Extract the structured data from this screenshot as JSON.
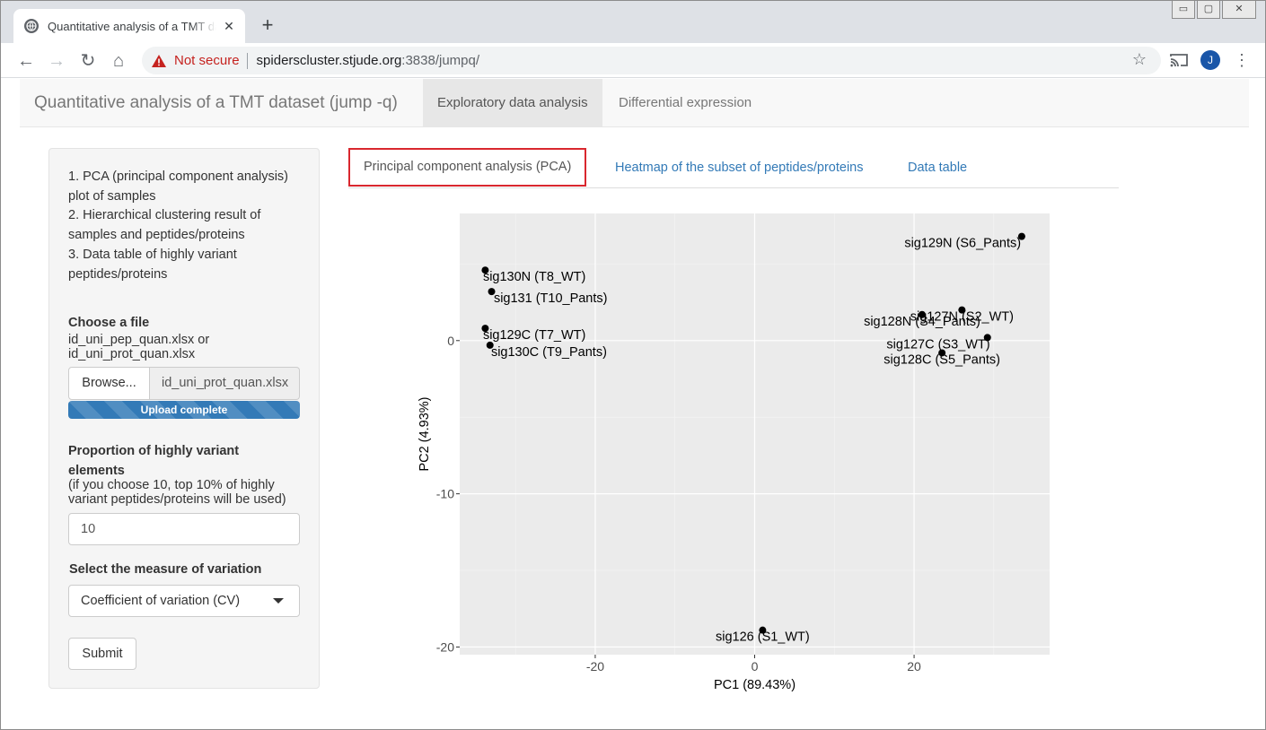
{
  "browser": {
    "tab_title": "Quantitative analysis of a TMT dataset (jump -q)",
    "tab_close": "✕",
    "new_tab": "+",
    "security_label": "Not secure",
    "url_host": "spiderscluster.stjude.org",
    "url_rest": ":3838/jumpq/",
    "profile_initial": "J",
    "window_controls": [
      "▭",
      "▢",
      "✕"
    ]
  },
  "app": {
    "brand": "Quantitative analysis of a TMT dataset (jump -q)",
    "nav_tabs": [
      "Exploratory data analysis",
      "Differential expression"
    ],
    "active_nav": "Exploratory data analysis"
  },
  "sidebar": {
    "description": [
      "1. PCA (principal component analysis) plot of samples",
      "2. Hierarchical clustering result of samples and peptides/proteins",
      "3. Data table of highly variant peptides/proteins"
    ],
    "file_label": "Choose a file",
    "file_hint": [
      "id_uni_pep_quan.xlsx or",
      "id_uni_prot_quan.xlsx"
    ],
    "browse_label": "Browse...",
    "file_name": "id_uni_prot_quan.xlsx",
    "upload_status": "Upload complete",
    "upload_progress": 1.0,
    "proportion_label": "Proportion of highly variant elements",
    "proportion_hint": [
      "(if you choose 10, top 10% of highly",
      "variant peptides/proteins will be used)"
    ],
    "proportion_value": "10",
    "measure_label": "Select the measure of variation",
    "measure_value": "Coefficient of variation (CV)",
    "submit_label": "Submit"
  },
  "main_tabs": [
    "Principal component analysis (PCA)",
    "Heatmap of the subset of peptides/proteins",
    "Data table"
  ],
  "active_main_tab": "Principal component analysis (PCA)",
  "chart_data": {
    "type": "scatter",
    "xlabel": "PC1 (89.43%)",
    "ylabel": "PC2 (4.93%)",
    "xlim": [
      -37,
      37
    ],
    "ylim": [
      -20.5,
      8.3
    ],
    "x_ticks": [
      -20,
      0,
      20
    ],
    "y_ticks": [
      -20,
      -10,
      0
    ],
    "x_tick_labels": [
      "-20",
      "0",
      "20"
    ],
    "y_tick_labels": [
      "-20",
      "-10",
      "0"
    ],
    "grid": true,
    "background": "#ebebeb",
    "points": [
      {
        "label": "sig129N (S6_Pants)",
        "x": 33.5,
        "y": 6.8
      },
      {
        "label": "sig130N (T8_WT)",
        "x": -33.8,
        "y": 4.6
      },
      {
        "label": "sig131 (T10_Pants)",
        "x": -33.0,
        "y": 3.2
      },
      {
        "label": "sig129C (T7_WT)",
        "x": -33.8,
        "y": 0.8
      },
      {
        "label": "sig130C (T9_Pants)",
        "x": -33.2,
        "y": -0.3
      },
      {
        "label": "sig127N (S2_WT)",
        "x": 26.0,
        "y": 2.0
      },
      {
        "label": "sig128N (S4_Pants)",
        "x": 21.0,
        "y": 1.7
      },
      {
        "label": "sig127C (S3_WT)",
        "x": 29.2,
        "y": 0.2
      },
      {
        "label": "sig128C (S5_Pants)",
        "x": 23.5,
        "y": -0.8
      },
      {
        "label": "sig126 (S1_WT)",
        "x": 1.0,
        "y": -18.9
      }
    ]
  }
}
